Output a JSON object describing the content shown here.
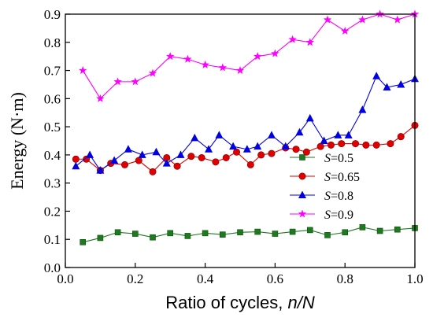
{
  "chart_data": {
    "type": "line",
    "xlabel": "Ratio of cycles, n/N",
    "ylabel": "Energy (N·m)",
    "xlim": [
      0,
      1.0
    ],
    "ylim": [
      0,
      0.9
    ],
    "xticks": [
      0.0,
      0.2,
      0.4,
      0.6,
      0.8,
      1.0
    ],
    "xtick_labels": [
      "0.0",
      "0.2",
      "0.4",
      "0.6",
      "0.8",
      "1.0"
    ],
    "yticks": [
      0.0,
      0.1,
      0.2,
      0.3,
      0.4,
      0.5,
      0.6,
      0.7,
      0.8,
      0.9
    ],
    "ytick_labels": [
      "0.0",
      "0.1",
      "0.2",
      "0.3",
      "0.4",
      "0.5",
      "0.6",
      "0.7",
      "0.8",
      "0.9"
    ],
    "grid": false,
    "legend_position": "right-middle",
    "series": [
      {
        "name": "S=0.5",
        "legend_var": "S",
        "legend_val": "=0.5",
        "color": "#1e7a1e",
        "marker": "square",
        "x": [
          0.05,
          0.1,
          0.15,
          0.2,
          0.25,
          0.3,
          0.35,
          0.4,
          0.45,
          0.5,
          0.55,
          0.6,
          0.65,
          0.7,
          0.75,
          0.8,
          0.85,
          0.9,
          0.95,
          1.0
        ],
        "y": [
          0.09,
          0.105,
          0.125,
          0.12,
          0.107,
          0.122,
          0.112,
          0.122,
          0.117,
          0.125,
          0.127,
          0.12,
          0.127,
          0.133,
          0.115,
          0.125,
          0.143,
          0.13,
          0.135,
          0.14
        ]
      },
      {
        "name": "S=0.65",
        "legend_var": "S",
        "legend_val": "=0.65",
        "color": "#e00000",
        "marker": "circle",
        "x": [
          0.03,
          0.06,
          0.1,
          0.13,
          0.17,
          0.21,
          0.25,
          0.29,
          0.32,
          0.36,
          0.39,
          0.43,
          0.46,
          0.49,
          0.53,
          0.56,
          0.59,
          0.63,
          0.66,
          0.69,
          0.73,
          0.76,
          0.79,
          0.83,
          0.86,
          0.89,
          0.93,
          0.96,
          1.0
        ],
        "y": [
          0.385,
          0.385,
          0.345,
          0.37,
          0.365,
          0.38,
          0.34,
          0.39,
          0.36,
          0.395,
          0.39,
          0.375,
          0.39,
          0.41,
          0.365,
          0.4,
          0.405,
          0.425,
          0.42,
          0.41,
          0.43,
          0.435,
          0.44,
          0.44,
          0.435,
          0.435,
          0.44,
          0.465,
          0.505
        ]
      },
      {
        "name": "S=0.8",
        "legend_var": "S",
        "legend_val": "=0.8",
        "color": "#0000e0",
        "marker": "triangle",
        "x": [
          0.03,
          0.07,
          0.1,
          0.14,
          0.18,
          0.22,
          0.26,
          0.29,
          0.33,
          0.37,
          0.41,
          0.44,
          0.48,
          0.52,
          0.55,
          0.59,
          0.63,
          0.67,
          0.7,
          0.74,
          0.78,
          0.81,
          0.85,
          0.89,
          0.92,
          0.96,
          1.0
        ],
        "y": [
          0.36,
          0.4,
          0.345,
          0.38,
          0.42,
          0.4,
          0.41,
          0.37,
          0.4,
          0.46,
          0.42,
          0.47,
          0.43,
          0.42,
          0.43,
          0.47,
          0.43,
          0.48,
          0.53,
          0.45,
          0.47,
          0.47,
          0.56,
          0.68,
          0.64,
          0.65,
          0.67
        ]
      },
      {
        "name": "S=0.9",
        "legend_var": "S",
        "legend_val": "=0.9",
        "color": "#ff00ff",
        "marker": "star",
        "x": [
          0.05,
          0.1,
          0.15,
          0.2,
          0.25,
          0.3,
          0.35,
          0.4,
          0.45,
          0.5,
          0.55,
          0.6,
          0.65,
          0.7,
          0.75,
          0.8,
          0.85,
          0.9,
          0.95,
          1.0
        ],
        "y": [
          0.7,
          0.6,
          0.66,
          0.66,
          0.69,
          0.75,
          0.74,
          0.72,
          0.71,
          0.7,
          0.75,
          0.76,
          0.81,
          0.8,
          0.88,
          0.84,
          0.88,
          0.9,
          0.88,
          0.9
        ]
      }
    ]
  }
}
